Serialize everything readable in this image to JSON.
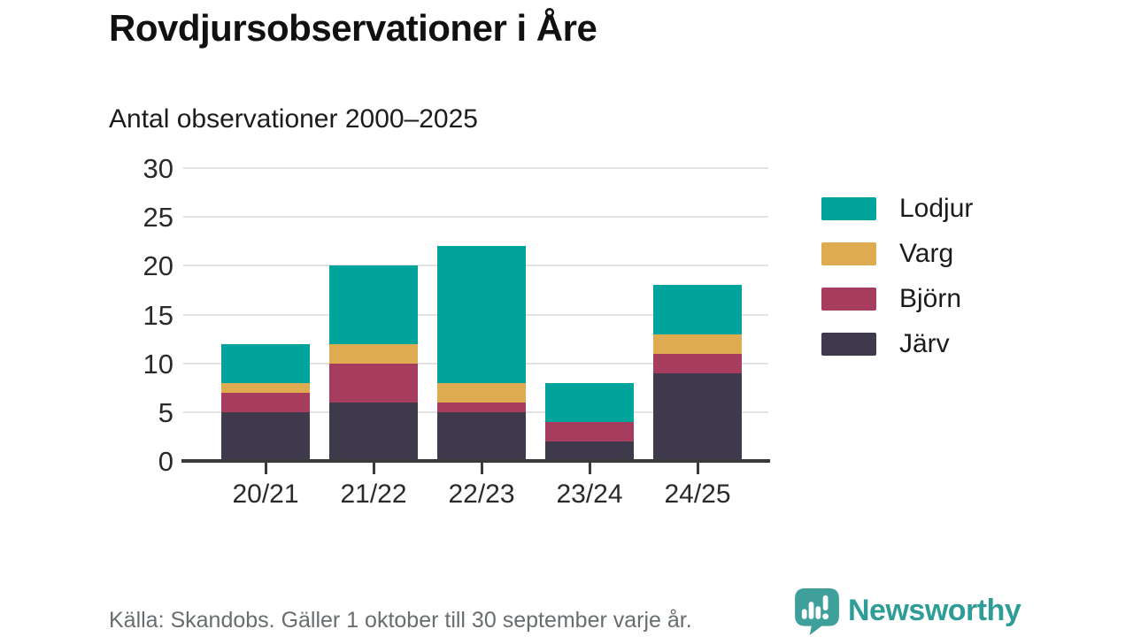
{
  "header": {
    "title": "Rovdjursobservationer i Åre",
    "subtitle": "Antal observationer 2000–2025"
  },
  "chart_data": {
    "type": "bar",
    "stacked": true,
    "title": "Rovdjursobservationer i Åre",
    "subtitle": "Antal observationer 2000–2025",
    "categories": [
      "20/21",
      "21/22",
      "22/23",
      "23/24",
      "24/25"
    ],
    "series": [
      {
        "name": "Järv",
        "color": "#3e3a4c",
        "values": [
          5,
          6,
          5,
          2,
          9
        ]
      },
      {
        "name": "Björn",
        "color": "#a63c5e",
        "values": [
          2,
          4,
          1,
          2,
          2
        ]
      },
      {
        "name": "Varg",
        "color": "#deab50",
        "values": [
          1,
          2,
          2,
          0,
          2
        ]
      },
      {
        "name": "Lodjur",
        "color": "#00a49a",
        "values": [
          4,
          8,
          14,
          4,
          5
        ]
      }
    ],
    "totals": [
      12,
      20,
      22,
      8,
      18
    ],
    "legend_order": [
      "Lodjur",
      "Varg",
      "Björn",
      "Järv"
    ],
    "legend_position": "right",
    "y_ticks": [
      0,
      5,
      10,
      15,
      20,
      25,
      30
    ],
    "ylim": [
      0,
      30
    ],
    "grid": true,
    "xlabel": "",
    "ylabel": ""
  },
  "footer": {
    "source": "Källa: Skandobs. Gäller 1 oktober till 30 september varje år.",
    "brand": "Newsworthy",
    "brand_color": "#2e9d97"
  },
  "icons": {
    "logo": "newsworthy-speech-bubble-bar-chart-icon"
  }
}
